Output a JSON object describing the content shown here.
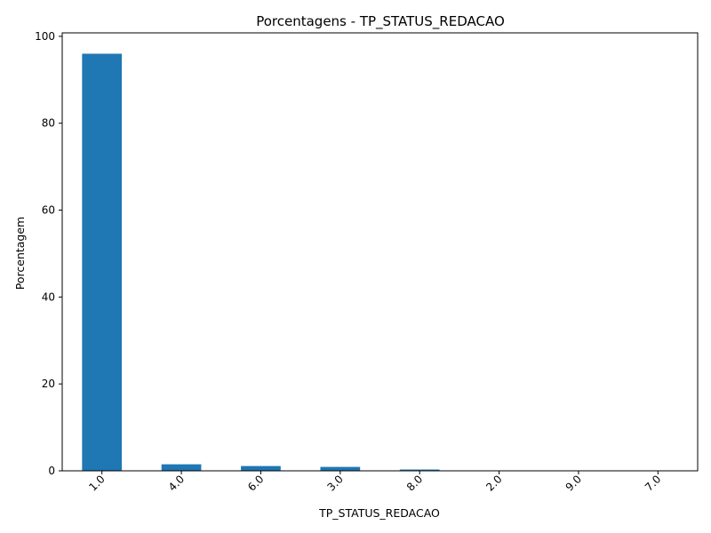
{
  "chart_data": {
    "type": "bar",
    "title": "Porcentagens - TP_STATUS_REDACAO",
    "xlabel": "TP_STATUS_REDACAO",
    "ylabel": "Porcentagem",
    "categories": [
      "1.0",
      "4.0",
      "6.0",
      "3.0",
      "8.0",
      "2.0",
      "9.0",
      "7.0"
    ],
    "values": [
      96.0,
      1.5,
      1.1,
      0.9,
      0.3,
      0.05,
      0.02,
      0.01
    ],
    "ylim": [
      0,
      100.8
    ],
    "yticks": [
      "0",
      "20",
      "40",
      "60",
      "80",
      "100"
    ],
    "bar_color": "#1f77b4",
    "grid": false,
    "legend": "none"
  }
}
